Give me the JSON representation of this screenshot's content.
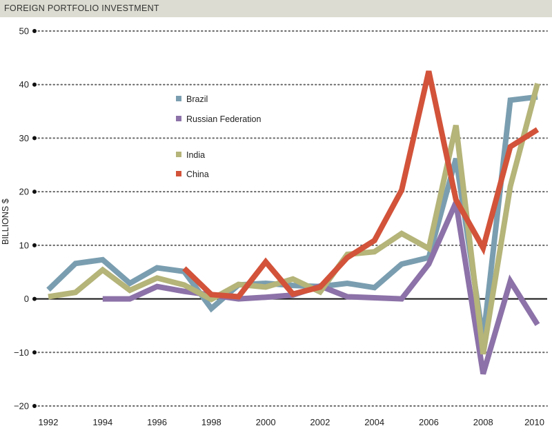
{
  "header": {
    "title": "FOREIGN PORTFOLIO INVESTMENT"
  },
  "chart_data": {
    "type": "line",
    "title": "FOREIGN PORTFOLIO INVESTMENT",
    "xlabel": "",
    "ylabel": "BILLIONS $",
    "ylim": [
      -20,
      50
    ],
    "xlim": [
      1992,
      2010
    ],
    "y_ticks": [
      50,
      40,
      30,
      20,
      10,
      0,
      -10,
      -20
    ],
    "y_tick_labels": [
      "50",
      "40",
      "30",
      "20",
      "10",
      "0",
      "−10",
      "−20"
    ],
    "x_ticks": [
      1992,
      1994,
      1996,
      1998,
      2000,
      2002,
      2004,
      2006,
      2008,
      2010
    ],
    "x_tick_labels": [
      "1992",
      "1994",
      "1996",
      "1998",
      "2000",
      "2002",
      "2004",
      "2006",
      "2008",
      "2010"
    ],
    "grid": "horizontal dotted",
    "legend_position": "upper-left",
    "series": [
      {
        "name": "Brazil",
        "color": "#7a9eb0",
        "x": [
          1992,
          1993,
          1994,
          1995,
          1996,
          1997,
          1998,
          1999,
          2000,
          2001,
          2002,
          2003,
          2004,
          2005,
          2006,
          2007,
          2008,
          2009,
          2010
        ],
        "y": [
          1.7,
          6.6,
          7.3,
          2.9,
          5.8,
          5.1,
          -1.8,
          2.6,
          2.9,
          2.5,
          2.3,
          2.9,
          2.1,
          6.5,
          7.7,
          26.2,
          -7.6,
          37.1,
          37.7
        ]
      },
      {
        "name": "Russian Federation",
        "color": "#8c72a8",
        "x": [
          1994,
          1995,
          1996,
          1997,
          1998,
          1999,
          2000,
          2001,
          2002,
          2003,
          2004,
          2005,
          2006,
          2007,
          2008,
          2009,
          2010
        ],
        "y": [
          0.0,
          0.0,
          2.3,
          1.4,
          0.7,
          0.0,
          0.3,
          0.7,
          2.4,
          0.4,
          0.2,
          0.0,
          6.5,
          18.0,
          -14.0,
          3.3,
          -4.8
        ]
      },
      {
        "name": "India",
        "color": "#b5b479",
        "x": [
          1992,
          1993,
          1994,
          1995,
          1996,
          1997,
          1998,
          1999,
          2000,
          2001,
          2002,
          2003,
          2004,
          2005,
          2006,
          2007,
          2008,
          2009,
          2010
        ],
        "y": [
          0.4,
          1.2,
          5.4,
          1.6,
          3.9,
          2.6,
          -0.1,
          2.7,
          2.2,
          3.7,
          1.3,
          8.3,
          8.8,
          12.2,
          9.4,
          32.4,
          -10.3,
          21.0,
          40.2
        ]
      },
      {
        "name": "China",
        "color": "#d2533a",
        "x": [
          1997,
          1998,
          1999,
          2000,
          2001,
          2002,
          2003,
          2004,
          2005,
          2006,
          2007,
          2008,
          2009,
          2010
        ],
        "y": [
          5.7,
          0.8,
          0.4,
          6.9,
          0.9,
          2.2,
          7.7,
          10.9,
          20.3,
          42.5,
          18.5,
          9.5,
          28.4,
          31.6
        ]
      }
    ]
  }
}
